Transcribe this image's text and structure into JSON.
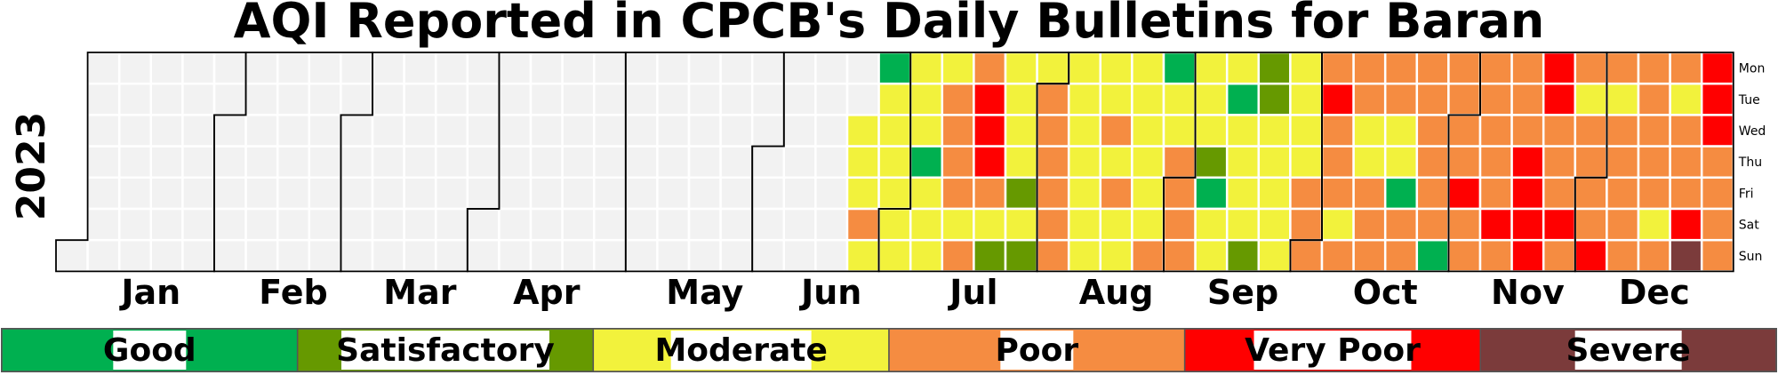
{
  "chart_data": {
    "type": "heatmap",
    "title": "AQI Reported in CPCB's Daily Bulletins for Baran",
    "year_label": "2023",
    "months": [
      "Jan",
      "Feb",
      "Mar",
      "Apr",
      "May",
      "Jun",
      "Jul",
      "Aug",
      "Sep",
      "Oct",
      "Nov",
      "Dec"
    ],
    "weekdays": [
      "Mon",
      "Tue",
      "Wed",
      "Thu",
      "Fri",
      "Sat",
      "Sun"
    ],
    "legend": [
      {
        "label": "Good",
        "color": "#00b050"
      },
      {
        "label": "Satisfactory",
        "color": "#669900"
      },
      {
        "label": "Moderate",
        "color": "#f2f23c"
      },
      {
        "label": "Poor",
        "color": "#f58c41"
      },
      {
        "label": "Very Poor",
        "color": "#ff0000"
      },
      {
        "label": "Severe",
        "color": "#7b3b3b"
      }
    ],
    "no_data_color": "#f2f2f2",
    "category_codes": {
      "G": "Good",
      "S": "Satisfactory",
      "M": "Moderate",
      "P": "Poor",
      "V": "Very Poor",
      "X": "Severe",
      ".": "No data"
    },
    "weeks": [
      [
        "",
        "",
        "",
        "",
        "",
        "",
        "."
      ],
      [
        ".",
        ".",
        ".",
        ".",
        ".",
        ".",
        "."
      ],
      [
        ".",
        ".",
        ".",
        ".",
        ".",
        ".",
        "."
      ],
      [
        ".",
        ".",
        ".",
        ".",
        ".",
        ".",
        "."
      ],
      [
        ".",
        ".",
        ".",
        ".",
        ".",
        ".",
        "."
      ],
      [
        ".",
        ".",
        ".",
        ".",
        ".",
        ".",
        "."
      ],
      [
        ".",
        ".",
        ".",
        ".",
        ".",
        ".",
        "."
      ],
      [
        ".",
        ".",
        ".",
        ".",
        ".",
        ".",
        "."
      ],
      [
        ".",
        ".",
        ".",
        ".",
        ".",
        ".",
        "."
      ],
      [
        ".",
        ".",
        ".",
        ".",
        ".",
        ".",
        "."
      ],
      [
        ".",
        ".",
        ".",
        ".",
        ".",
        ".",
        "."
      ],
      [
        ".",
        ".",
        ".",
        ".",
        ".",
        ".",
        "."
      ],
      [
        ".",
        ".",
        ".",
        ".",
        ".",
        ".",
        "."
      ],
      [
        ".",
        ".",
        ".",
        ".",
        ".",
        ".",
        "."
      ],
      [
        ".",
        ".",
        ".",
        ".",
        ".",
        ".",
        "."
      ],
      [
        ".",
        ".",
        ".",
        ".",
        ".",
        ".",
        "."
      ],
      [
        ".",
        ".",
        ".",
        ".",
        ".",
        ".",
        "."
      ],
      [
        ".",
        ".",
        ".",
        ".",
        ".",
        ".",
        "."
      ],
      [
        ".",
        ".",
        ".",
        ".",
        ".",
        ".",
        "."
      ],
      [
        ".",
        ".",
        ".",
        ".",
        ".",
        ".",
        "."
      ],
      [
        ".",
        ".",
        ".",
        ".",
        ".",
        ".",
        "."
      ],
      [
        ".",
        ".",
        ".",
        ".",
        ".",
        ".",
        "."
      ],
      [
        ".",
        ".",
        ".",
        ".",
        ".",
        ".",
        "."
      ],
      [
        ".",
        ".",
        ".",
        ".",
        ".",
        ".",
        "."
      ],
      [
        ".",
        ".",
        ".",
        ".",
        ".",
        ".",
        "."
      ],
      [
        ".",
        ".",
        "M",
        "M",
        "M",
        "P",
        "M"
      ],
      [
        "G",
        "M",
        "M",
        "M",
        "M",
        "M",
        "M"
      ],
      [
        "M",
        "M",
        "M",
        "G",
        "M",
        "M",
        "M"
      ],
      [
        "M",
        "P",
        "P",
        "P",
        "P",
        "M",
        "P"
      ],
      [
        "P",
        "V",
        "V",
        "V",
        "P",
        "M",
        "S"
      ],
      [
        "M",
        "M",
        "M",
        "M",
        "S",
        "M",
        "S"
      ],
      [
        "M",
        "P",
        "P",
        "P",
        "P",
        "P",
        "P"
      ],
      [
        "M",
        "M",
        "M",
        "M",
        "M",
        "M",
        "M"
      ],
      [
        "M",
        "M",
        "P",
        "M",
        "P",
        "M",
        "M"
      ],
      [
        "M",
        "M",
        "M",
        "M",
        "M",
        "M",
        "P"
      ],
      [
        "G",
        "M",
        "M",
        "P",
        "P",
        "P",
        "P"
      ],
      [
        "M",
        "M",
        "M",
        "S",
        "G",
        "M",
        "M"
      ],
      [
        "M",
        "G",
        "M",
        "M",
        "M",
        "M",
        "S"
      ],
      [
        "S",
        "S",
        "M",
        "M",
        "M",
        "M",
        "M"
      ],
      [
        "M",
        "M",
        "M",
        "M",
        "P",
        "P",
        "P"
      ],
      [
        "P",
        "V",
        "P",
        "P",
        "P",
        "M",
        "P"
      ],
      [
        "P",
        "P",
        "M",
        "M",
        "P",
        "P",
        "P"
      ],
      [
        "P",
        "P",
        "M",
        "M",
        "G",
        "P",
        "P"
      ],
      [
        "P",
        "P",
        "P",
        "P",
        "P",
        "P",
        "G"
      ],
      [
        "P",
        "P",
        "P",
        "P",
        "V",
        "P",
        "P"
      ],
      [
        "P",
        "P",
        "P",
        "P",
        "P",
        "V",
        "P"
      ],
      [
        "P",
        "P",
        "P",
        "V",
        "V",
        "V",
        "V"
      ],
      [
        "V",
        "V",
        "P",
        "P",
        "P",
        "V",
        "P"
      ],
      [
        "P",
        "M",
        "P",
        "P",
        "P",
        "P",
        "V"
      ],
      [
        "P",
        "M",
        "P",
        "P",
        "P",
        "P",
        "P"
      ],
      [
        "P",
        "P",
        "P",
        "P",
        "P",
        "M",
        "P"
      ],
      [
        "P",
        "M",
        "P",
        "P",
        "P",
        "V",
        "X"
      ],
      [
        "V",
        "V",
        "V",
        "P",
        "P",
        "P",
        "P"
      ]
    ]
  }
}
